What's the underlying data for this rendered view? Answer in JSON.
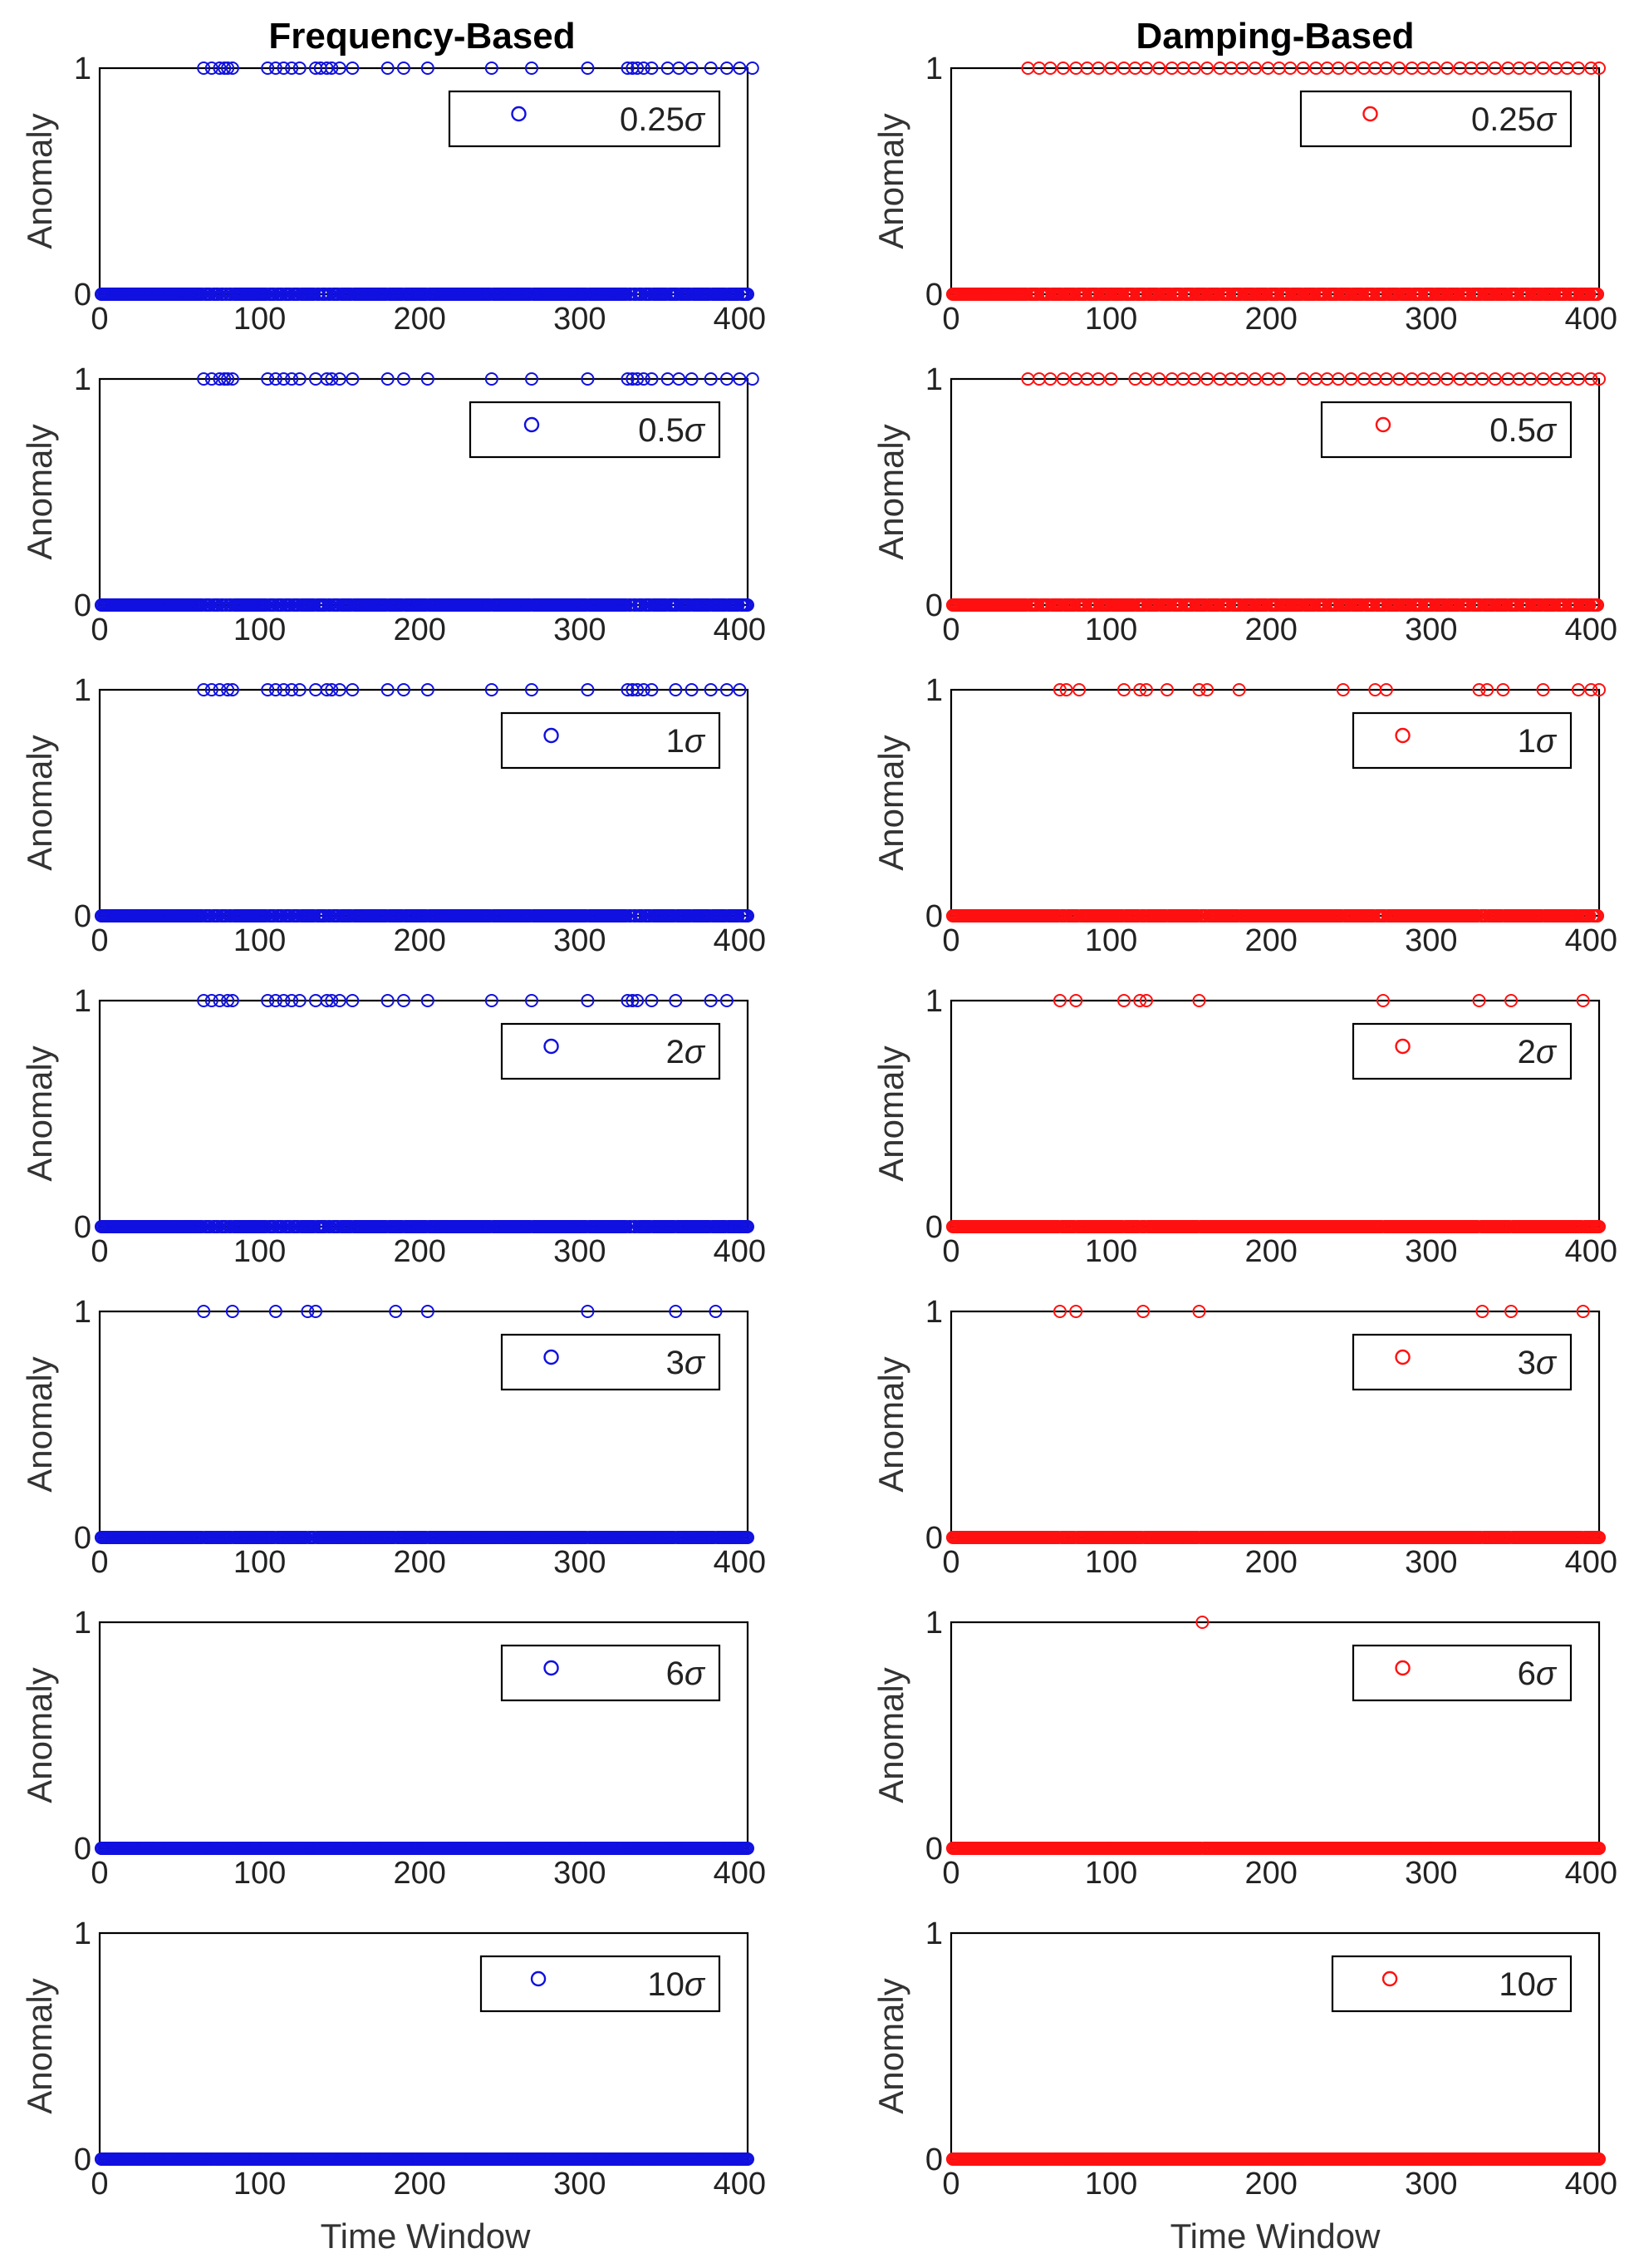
{
  "chart_data": [
    {
      "type": "scatter",
      "title": "Frequency-Based",
      "xlabel": "Time Window",
      "ylabel": "Anomaly",
      "xlim": [
        0,
        405
      ],
      "ylim": [
        0,
        1
      ],
      "xticks": [
        0,
        100,
        200,
        300,
        400
      ],
      "yticks": [
        0,
        1
      ],
      "color": "#1010e0",
      "panels": [
        {
          "legend": "0.25",
          "ones": [
            65,
            70,
            75,
            78,
            80,
            83,
            105,
            110,
            115,
            120,
            125,
            135,
            138,
            142,
            145,
            150,
            158,
            180,
            190,
            205,
            245,
            270,
            305,
            330,
            333,
            336,
            340,
            345,
            355,
            362,
            370,
            382,
            392,
            400,
            408
          ]
        },
        {
          "legend": "0.5",
          "ones": [
            65,
            70,
            75,
            78,
            80,
            83,
            105,
            110,
            115,
            120,
            125,
            135,
            142,
            145,
            150,
            158,
            180,
            190,
            205,
            245,
            270,
            305,
            330,
            333,
            336,
            340,
            345,
            355,
            362,
            370,
            382,
            392,
            400,
            408
          ]
        },
        {
          "legend": "1",
          "ones": [
            65,
            70,
            75,
            80,
            83,
            105,
            110,
            115,
            120,
            125,
            135,
            142,
            145,
            150,
            158,
            180,
            190,
            205,
            245,
            270,
            305,
            330,
            333,
            336,
            340,
            345,
            360,
            370,
            382,
            392,
            400
          ]
        },
        {
          "legend": "2",
          "ones": [
            65,
            70,
            75,
            80,
            83,
            105,
            110,
            115,
            120,
            125,
            135,
            142,
            145,
            150,
            158,
            180,
            190,
            205,
            245,
            270,
            305,
            330,
            333,
            336,
            345,
            360,
            382,
            392
          ]
        },
        {
          "legend": "3",
          "ones": [
            65,
            83,
            110,
            130,
            135,
            185,
            205,
            305,
            360,
            385
          ]
        },
        {
          "legend": "6",
          "ones": []
        },
        {
          "legend": "10",
          "ones": []
        }
      ]
    },
    {
      "type": "scatter",
      "title": "Damping-Based",
      "xlabel": "Time Window",
      "ylabel": "Anomaly",
      "xlim": [
        0,
        405
      ],
      "ylim": [
        0,
        1
      ],
      "xticks": [
        0,
        100,
        200,
        300,
        400
      ],
      "yticks": [
        0,
        1
      ],
      "color": "#ff1010",
      "panels": [
        {
          "legend": "0.25",
          "ones": [
            48,
            55,
            62,
            70,
            78,
            85,
            92,
            100,
            108,
            115,
            122,
            130,
            138,
            145,
            152,
            160,
            168,
            175,
            182,
            190,
            198,
            205,
            212,
            220,
            228,
            235,
            242,
            250,
            258,
            265,
            272,
            280,
            288,
            295,
            302,
            310,
            318,
            325,
            332,
            340,
            348,
            355,
            362,
            370,
            378,
            385,
            392,
            400,
            405
          ]
        },
        {
          "legend": "0.5",
          "ones": [
            48,
            55,
            62,
            70,
            78,
            85,
            92,
            100,
            115,
            122,
            130,
            138,
            145,
            152,
            160,
            168,
            175,
            182,
            190,
            198,
            205,
            220,
            228,
            235,
            242,
            250,
            258,
            265,
            272,
            280,
            288,
            295,
            302,
            310,
            318,
            325,
            332,
            340,
            348,
            355,
            362,
            370,
            378,
            385,
            392,
            400,
            405
          ]
        },
        {
          "legend": "1",
          "ones": [
            68,
            72,
            80,
            108,
            118,
            122,
            135,
            155,
            160,
            180,
            245,
            265,
            272,
            330,
            335,
            345,
            370,
            392,
            400,
            405
          ]
        },
        {
          "legend": "2",
          "ones": [
            68,
            78,
            108,
            118,
            122,
            155,
            270,
            330,
            350,
            395
          ]
        },
        {
          "legend": "3",
          "ones": [
            68,
            78,
            120,
            155,
            332,
            350,
            395
          ]
        },
        {
          "legend": "6",
          "ones": [
            157
          ]
        },
        {
          "legend": "10",
          "ones": []
        }
      ]
    }
  ],
  "legend_sigma_symbol": "σ",
  "background": "#ffffff"
}
